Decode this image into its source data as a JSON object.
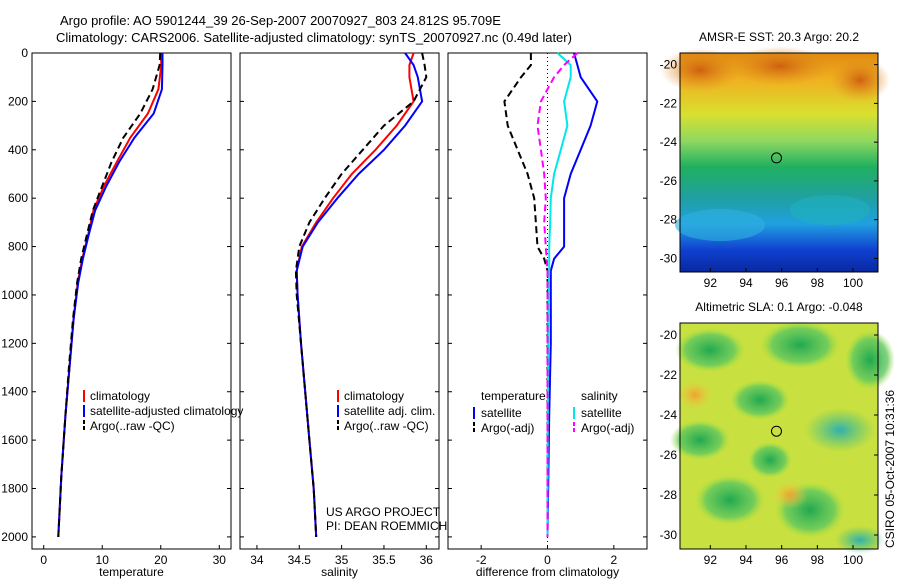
{
  "title_line1": "Argo profile: AO 5901244_39 26-Sep-2007 20070927_803 24.812S 95.709E",
  "title_line2": "Climatology: CARS2006. Satellite-adjusted climatology: synTS_20070927.nc (0.49d later)",
  "side_stamp": "CSIRO 05-Oct-2007 10:31:36",
  "colors": {
    "climatology": "#ff0000",
    "satellite": "#0000ff",
    "argo": "#000000",
    "sal_satellite": "#00e8e8",
    "sal_argo": "#ff00ff"
  },
  "chart_data": [
    {
      "type": "line",
      "xlabel": "temperature",
      "xlim": [
        -2,
        32
      ],
      "xticks": [
        "0",
        "10",
        "20",
        "30"
      ],
      "ylim": [
        2050,
        0
      ],
      "yticks": [
        "0",
        "200",
        "400",
        "600",
        "800",
        "1000",
        "1200",
        "1400",
        "1600",
        "1800",
        "2000"
      ],
      "legend": [
        "climatology",
        "satellite-adjusted climatology",
        "Argo(..raw -QC)"
      ],
      "series": [
        {
          "name": "climatology",
          "x": [
            20.0,
            20.1,
            19.6,
            17.8,
            14.8,
            12.5,
            10.3,
            8.5,
            7.6,
            6.6,
            5.8,
            5.1,
            4.4,
            3.7,
            3.0,
            2.5
          ],
          "y": [
            0,
            50,
            150,
            250,
            350,
            450,
            550,
            650,
            750,
            850,
            950,
            1100,
            1300,
            1500,
            1750,
            2000
          ]
        },
        {
          "name": "satellite-adjusted climatology",
          "x": [
            20.3,
            20.3,
            20.2,
            18.8,
            15.5,
            12.9,
            10.7,
            8.8,
            7.7,
            6.7,
            5.9,
            5.1,
            4.4,
            3.7,
            3.0,
            2.5
          ],
          "y": [
            0,
            50,
            150,
            250,
            350,
            450,
            550,
            650,
            750,
            850,
            950,
            1100,
            1300,
            1500,
            1750,
            2000
          ]
        },
        {
          "name": "Argo(..raw -QC)",
          "x": [
            19.9,
            19.8,
            18.6,
            16.5,
            13.6,
            11.6,
            10.0,
            8.4,
            7.4,
            6.4,
            5.7,
            5.0,
            4.3,
            3.7,
            3.0,
            2.5
          ],
          "y": [
            0,
            50,
            150,
            250,
            350,
            450,
            550,
            650,
            750,
            850,
            950,
            1100,
            1300,
            1500,
            1750,
            2000
          ]
        }
      ]
    },
    {
      "type": "line",
      "xlabel": "salinity",
      "xlim": [
        33.8,
        36.15
      ],
      "xticks": [
        "34",
        "34.5",
        "35",
        "35.5",
        "36"
      ],
      "ylim": [
        2050,
        0
      ],
      "legend": [
        "climatology",
        "satellite adj. clim.",
        "Argo(..raw -QC)"
      ],
      "annotation": [
        "US ARGO PROJECT",
        "PI: DEAN ROEMMICH"
      ],
      "series": [
        {
          "name": "climatology",
          "x": [
            35.85,
            35.8,
            35.8,
            35.85,
            35.65,
            35.4,
            35.12,
            34.9,
            34.7,
            34.53,
            34.47,
            34.48,
            34.52,
            34.57,
            34.62,
            34.67,
            34.7
          ],
          "y": [
            0,
            50,
            100,
            200,
            300,
            400,
            500,
            600,
            700,
            800,
            900,
            1000,
            1200,
            1400,
            1600,
            1800,
            2000
          ]
        },
        {
          "name": "satellite adj. clim.",
          "x": [
            35.75,
            35.85,
            35.9,
            35.95,
            35.75,
            35.5,
            35.2,
            34.95,
            34.72,
            34.54,
            34.47,
            34.48,
            34.52,
            34.57,
            34.62,
            34.67,
            34.7
          ],
          "y": [
            0,
            50,
            100,
            200,
            300,
            400,
            500,
            600,
            700,
            800,
            900,
            1000,
            1200,
            1400,
            1600,
            1800,
            2000
          ]
        },
        {
          "name": "Argo(..raw -QC)",
          "x": [
            35.95,
            35.98,
            36.0,
            35.85,
            35.5,
            35.25,
            35.0,
            34.8,
            34.62,
            34.5,
            34.46,
            34.47,
            34.52,
            34.57,
            34.62,
            34.67,
            34.7
          ],
          "y": [
            0,
            50,
            100,
            200,
            300,
            400,
            500,
            600,
            700,
            800,
            900,
            1000,
            1200,
            1400,
            1600,
            1800,
            2000
          ]
        }
      ]
    },
    {
      "type": "line",
      "xlabel": "difference from climatology",
      "xlim": [
        -3,
        3
      ],
      "xticks": [
        "-2",
        "0",
        "2"
      ],
      "ylim": [
        2050,
        0
      ],
      "legend_groups": [
        {
          "heading": "temperature",
          "items": [
            "satellite",
            "Argo(-adj)"
          ]
        },
        {
          "heading": "salinity",
          "items": [
            "satellite",
            "Argo(-adj)"
          ]
        }
      ],
      "series": [
        {
          "name": "temperature satellite",
          "x": [
            0.8,
            0.9,
            1.0,
            1.5,
            1.3,
            1.0,
            0.7,
            0.5,
            0.5,
            0.2,
            0.1,
            0.1,
            0.1,
            0.05,
            0.0
          ],
          "y": [
            0,
            50,
            100,
            200,
            300,
            400,
            500,
            600,
            800,
            850,
            900,
            1000,
            1200,
            1500,
            2000
          ]
        },
        {
          "name": "temperature Argo(-adj)",
          "x": [
            -0.5,
            -0.5,
            -0.8,
            -1.3,
            -1.2,
            -0.9,
            -0.6,
            -0.4,
            -0.3,
            -0.1,
            0.0,
            0.0,
            0.0,
            0.0,
            0.0
          ],
          "y": [
            0,
            50,
            100,
            200,
            300,
            400,
            500,
            600,
            800,
            850,
            900,
            1000,
            1200,
            1500,
            2000
          ]
        },
        {
          "name": "salinity satellite",
          "x": [
            0.3,
            0.7,
            0.7,
            0.5,
            0.6,
            0.4,
            0.2,
            0.1,
            0.08,
            0.05,
            0.05,
            0.03,
            0.02,
            0.01,
            0.0
          ],
          "y": [
            0,
            50,
            100,
            200,
            300,
            400,
            500,
            600,
            700,
            800,
            900,
            1000,
            1200,
            1500,
            2000
          ]
        },
        {
          "name": "salinity Argo(-adj)",
          "x": [
            0.9,
            0.5,
            0.2,
            -0.2,
            -0.3,
            -0.2,
            -0.1,
            -0.05,
            -0.1,
            -0.05,
            0.0,
            0.0,
            0.0,
            0.0,
            0.0
          ],
          "y": [
            0,
            50,
            100,
            200,
            300,
            400,
            500,
            600,
            700,
            800,
            900,
            1000,
            1200,
            1500,
            2000
          ]
        }
      ]
    },
    {
      "type": "heatmap",
      "title": "AMSR-E SST: 20.3 Argo: 20.2",
      "xlim": [
        90.3,
        101.4
      ],
      "xticks": [
        "92",
        "94",
        "96",
        "98",
        "100"
      ],
      "ylim": [
        -30.7,
        -19.4
      ],
      "yticks": [
        "-20",
        "-22",
        "-24",
        "-26",
        "-28",
        "-30"
      ],
      "marker": {
        "lon": 95.709,
        "lat": -24.812
      }
    },
    {
      "type": "heatmap",
      "title": "Altimetric SLA: 0.1 Argo: -0.048",
      "xlim": [
        90.3,
        101.4
      ],
      "xticks": [
        "92",
        "94",
        "96",
        "98",
        "100"
      ],
      "ylim": [
        -30.7,
        -19.4
      ],
      "yticks": [
        "-20",
        "-22",
        "-24",
        "-26",
        "-28",
        "-30"
      ],
      "marker": {
        "lon": 95.709,
        "lat": -24.812
      }
    }
  ]
}
